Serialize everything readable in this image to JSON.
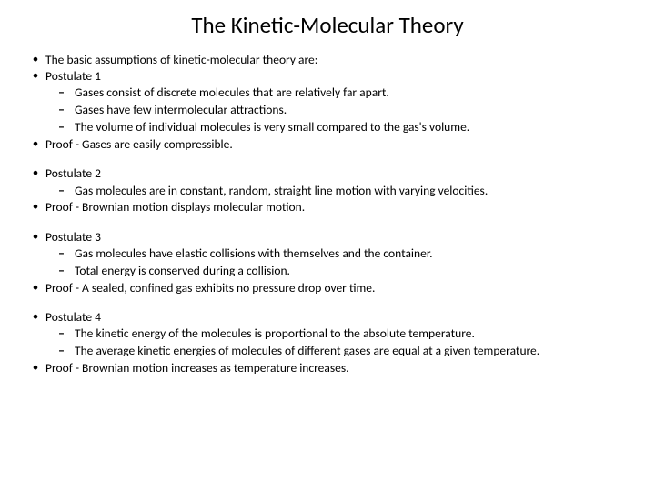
{
  "title": "The Kinetic-Molecular Theory",
  "bullet_glyph": "•",
  "dash_glyph": "–",
  "groups": [
    {
      "items": [
        {
          "type": "main",
          "text": "The basic assumptions of kinetic-molecular theory are:"
        },
        {
          "type": "main",
          "text": "Postulate 1"
        },
        {
          "type": "sub",
          "text": "Gases consist of discrete molecules that are relatively far apart."
        },
        {
          "type": "sub",
          "text": "Gases have few intermolecular attractions."
        },
        {
          "type": "sub",
          "text": "The volume of individual molecules is very small compared to the gas's volume."
        },
        {
          "type": "main",
          "text": "Proof - Gases are easily compressible."
        }
      ]
    },
    {
      "items": [
        {
          "type": "main",
          "text": "Postulate 2"
        },
        {
          "type": "sub",
          "text": "Gas molecules are in constant, random, straight line motion with varying velocities."
        },
        {
          "type": "main",
          "text": "Proof - Brownian motion displays molecular motion."
        }
      ]
    },
    {
      "items": [
        {
          "type": "main",
          "text": "Postulate 3"
        },
        {
          "type": "sub",
          "text": "Gas molecules have elastic collisions with themselves and the container."
        },
        {
          "type": "sub",
          "text": "Total energy is conserved during a collision."
        },
        {
          "type": "main",
          "text": "Proof - A sealed, confined gas exhibits no pressure drop over time."
        }
      ]
    },
    {
      "items": [
        {
          "type": "main",
          "text": "Postulate 4"
        },
        {
          "type": "sub",
          "text": "The kinetic energy of the molecules is proportional to the absolute temperature."
        },
        {
          "type": "sub",
          "text": "The average kinetic energies of molecules of different gases are equal at a given temperature."
        },
        {
          "type": "main",
          "text": "Proof - Brownian motion increases as temperature increases."
        }
      ]
    }
  ]
}
